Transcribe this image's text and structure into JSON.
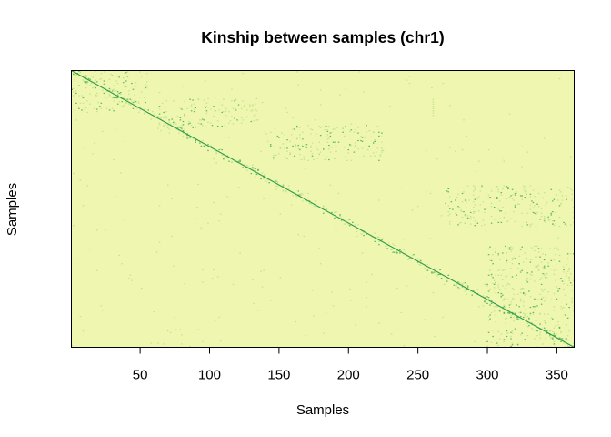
{
  "chart_data": {
    "type": "heatmap",
    "title": "Kinship between samples (chr1)",
    "xlabel": "Samples",
    "ylabel": "Samples",
    "n_samples": 362,
    "xlim": [
      0.5,
      362.5
    ],
    "ylim": [
      0.5,
      362.5
    ],
    "x_ticks": [
      50,
      100,
      150,
      200,
      250,
      300,
      350
    ],
    "y_ticks": [],
    "grid": false,
    "legend": "none",
    "colors": {
      "background": "#EEF6AF",
      "low": "#F2F8B8",
      "medium": "#C6E48A",
      "high": "#5DB85E",
      "diagonal": "#2E9A4E",
      "axis": "#000000",
      "text": "#000000"
    },
    "structure": {
      "diagonal": "self-kinship along the main diagonal (sample i vs sample i)",
      "related_blocks": [
        {
          "x_range": [
            1,
            55
          ],
          "y_range": [
            1,
            55
          ]
        },
        {
          "x_range": [
            63,
            135
          ],
          "y_range": [
            35,
            75
          ]
        },
        {
          "x_range": [
            140,
            225
          ],
          "y_range": [
            72,
            118
          ]
        },
        {
          "x_range": [
            270,
            362
          ],
          "y_range": [
            150,
            205
          ]
        },
        {
          "x_range": [
            300,
            362
          ],
          "y_range": [
            230,
            362
          ]
        }
      ],
      "hot_column": {
        "x": 261,
        "y_range": [
          38,
          60
        ]
      }
    }
  }
}
